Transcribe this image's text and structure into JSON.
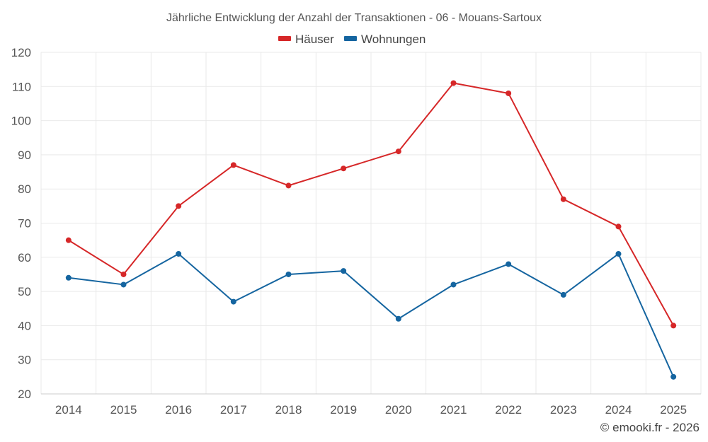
{
  "chart_data": {
    "type": "line",
    "title": "Jährliche Entwicklung der Anzahl der Transaktionen - 06 - Mouans-Sartoux",
    "categories": [
      "2014",
      "2015",
      "2016",
      "2017",
      "2018",
      "2019",
      "2020",
      "2021",
      "2022",
      "2023",
      "2024",
      "2025"
    ],
    "series": [
      {
        "name": "Häuser",
        "color": "#d62728",
        "values": [
          65,
          55,
          75,
          87,
          81,
          86,
          91,
          111,
          108,
          77,
          69,
          40
        ]
      },
      {
        "name": "Wohnungen",
        "color": "#1565a0",
        "values": [
          54,
          52,
          61,
          47,
          55,
          56,
          42,
          52,
          58,
          49,
          61,
          25
        ]
      }
    ],
    "ylim": [
      20,
      120
    ],
    "yticks": [
      20,
      30,
      40,
      50,
      60,
      70,
      80,
      90,
      100,
      110,
      120
    ],
    "xlabel": "",
    "ylabel": "",
    "grid": true,
    "legend_position": "top-center"
  },
  "credit": "© emooki.fr - 2026"
}
